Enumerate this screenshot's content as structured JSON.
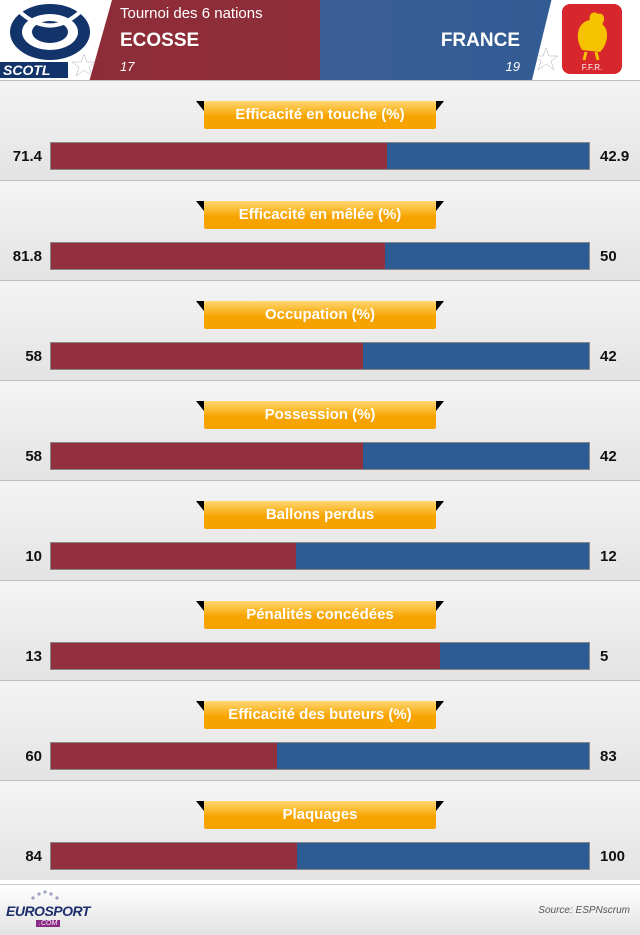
{
  "header": {
    "competition": "Tournoi des 6 nations",
    "left_logo_text": "SCOTL",
    "right_logo_text": "F.F.R.",
    "home": {
      "name": "ECOSSE",
      "score": "17"
    },
    "away": {
      "name": "FRANCE",
      "score": "19"
    }
  },
  "colors": {
    "home": "#92303d",
    "away": "#2d5c95",
    "pill": "#f7a400"
  },
  "chart_data": {
    "type": "bar",
    "categories": [
      "Efficacité en touche (%)",
      "Efficacité en mêlée (%)",
      "Occupation (%)",
      "Possession (%)",
      "Ballons perdus",
      "Pénalités concédées",
      "Efficacité des buteurs (%)",
      "Plaquages"
    ],
    "series": [
      {
        "name": "ECOSSE",
        "values": [
          71.4,
          81.8,
          58,
          58,
          10,
          13,
          60,
          84
        ]
      },
      {
        "name": "FRANCE",
        "values": [
          42.9,
          50,
          42,
          42,
          12,
          5,
          83,
          100
        ]
      }
    ],
    "home_labels": [
      "71.4",
      "81.8",
      "58",
      "58",
      "10",
      "13",
      "60",
      "84"
    ],
    "away_labels": [
      "42.9",
      "50",
      "42",
      "42",
      "12",
      "5",
      "83",
      "100"
    ]
  },
  "footer": {
    "logo_word": "EUROSPORT",
    "logo_sub": ".COM",
    "source": "Source: ESPNscrum"
  }
}
